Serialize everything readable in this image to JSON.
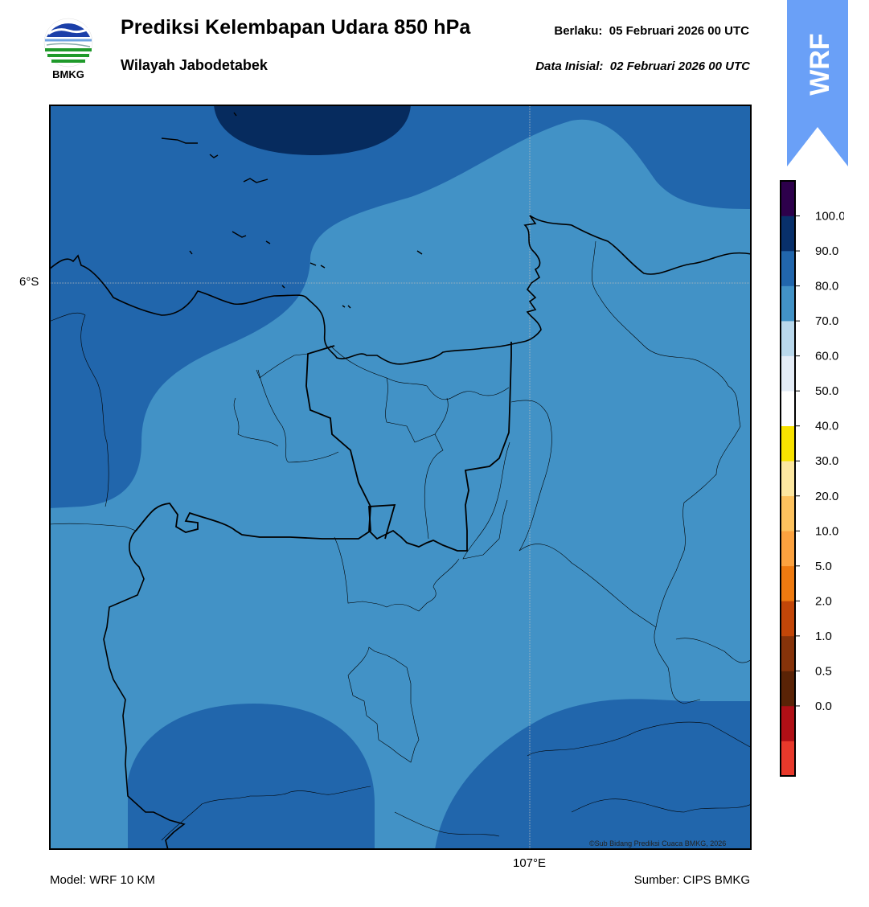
{
  "header": {
    "title": "Prediksi Kelembapan Udara 850 hPa",
    "region": "Wilayah Jabodetabek",
    "valid_label": "Berlaku:",
    "valid_time": "05 Februari 2026 00 UTC",
    "initial_label": "Data Inisial:",
    "initial_time": "02 Februari 2026 00 UTC"
  },
  "logo": {
    "text": "BMKG"
  },
  "badge": {
    "text": "WRF",
    "color": "#6aa0f7"
  },
  "map": {
    "lat_label": "6°S",
    "lon_label": "107°E",
    "copyright": "©Sub Bidang Prediksi Cuaca BMKG, 2026",
    "fill_colors": {
      "band_70_80": "#4292c6",
      "band_80_90": "#2166ac",
      "band_90_100": "#062b5e"
    }
  },
  "footer": {
    "model": "Model: WRF 10 KM",
    "source": "Sumber: CIPS BMKG"
  },
  "colorbar": {
    "ticks": [
      "100.0",
      "90.0",
      "80.0",
      "70.0",
      "60.0",
      "50.0",
      "40.0",
      "30.0",
      "20.0",
      "10.0",
      "5.0",
      "2.0",
      "1.0",
      "0.5",
      "0.0"
    ],
    "colors": [
      "#e8392b",
      "#b00f16",
      "#5a2306",
      "#86330a",
      "#c24608",
      "#ee7a10",
      "#fca23f",
      "#fdc25e",
      "#fde7a0",
      "#f8e200",
      "#ffffff",
      "#e4edf7",
      "#b9d8ec",
      "#4292c6",
      "#2166ac",
      "#08306b",
      "#2d004b"
    ]
  }
}
